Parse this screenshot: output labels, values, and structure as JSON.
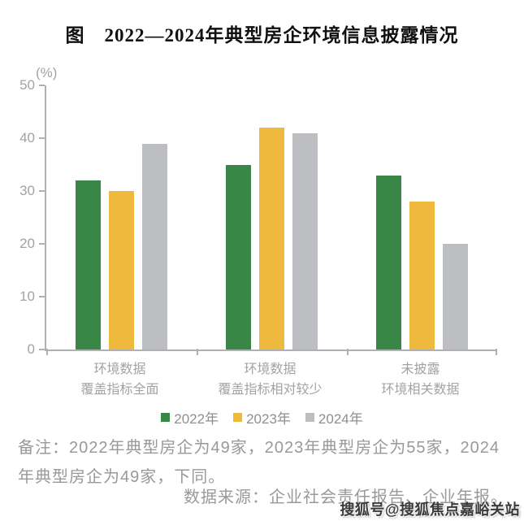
{
  "title": "图　2022—2024年典型房企环境信息披露情况",
  "chart_data": {
    "type": "bar",
    "unit_label": "(%)",
    "categories": [
      {
        "line1": "环境数据",
        "line2": "覆盖指标全面"
      },
      {
        "line1": "环境数据",
        "line2": "覆盖指标相对较少"
      },
      {
        "line1": "未披露",
        "line2": "环境相关数据"
      }
    ],
    "series": [
      {
        "name": "2022年",
        "color": "#388746",
        "values": [
          32,
          35,
          33
        ]
      },
      {
        "name": "2023年",
        "color": "#eeb93c",
        "values": [
          30,
          42,
          28
        ]
      },
      {
        "name": "2024年",
        "color": "#bcbec2",
        "values": [
          39,
          41,
          20
        ]
      }
    ],
    "ylim": [
      0,
      50
    ],
    "ytick_step": 10,
    "grid": false,
    "legend_position": "bottom"
  },
  "notes": {
    "remark": "备注：2022年典型房企为49家，2023年典型房企为55家，2024年典型房企为49家，下同。",
    "source": "数据来源：企业社会责任报告、企业年报。"
  },
  "watermark": "搜狐号@搜狐焦点嘉峪关站",
  "colors": {
    "bar_2022": "#388746",
    "bar_2023": "#eeb93c",
    "bar_2024": "#bcbec2",
    "axis": "#b0b0b3",
    "label_gray": "#a3a3a3",
    "note_gray": "#999999"
  }
}
